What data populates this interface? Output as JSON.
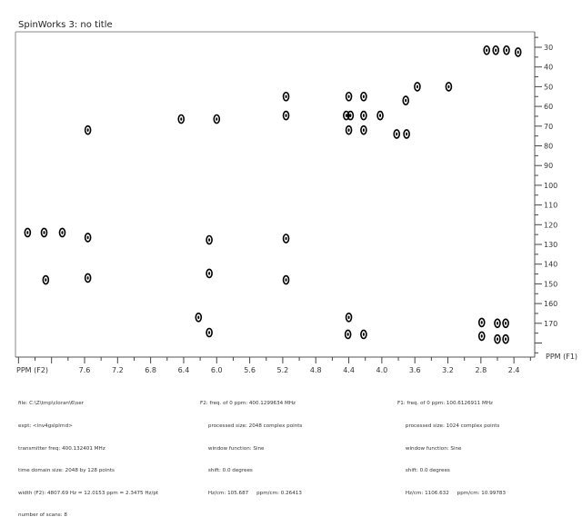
{
  "window_title": "SpinWorks 3: no title",
  "chart_data": {
    "type": "scatter",
    "subtype": "2D NMR contour plot",
    "title": "SpinWorks 3: no title",
    "xlabel": "PPM (F2)",
    "ylabel": "PPM (F1)",
    "xlim": [
      8.4,
      2.2
    ],
    "ylim": [
      22,
      186
    ],
    "x_reversed": true,
    "x_ticks": [
      7.6,
      7.2,
      6.8,
      6.4,
      6.0,
      5.6,
      5.2,
      4.8,
      4.4,
      4.0,
      3.6,
      3.2,
      2.8,
      2.4
    ],
    "y_ticks": [
      30,
      40,
      50,
      60,
      70,
      80,
      90,
      100,
      110,
      120,
      130,
      140,
      150,
      160,
      170
    ],
    "grid": false,
    "contour_color": "#000000",
    "peaks": [
      {
        "f2": 8.29,
        "f1": 124
      },
      {
        "f2": 8.09,
        "f1": 124
      },
      {
        "f2": 7.87,
        "f1": 124
      },
      {
        "f2": 7.56,
        "f1": 126.5
      },
      {
        "f2": 8.07,
        "f1": 148
      },
      {
        "f2": 7.56,
        "f1": 147
      },
      {
        "f2": 7.56,
        "f1": 72
      },
      {
        "f2": 6.43,
        "f1": 66.4
      },
      {
        "f2": 6.0,
        "f1": 66.4
      },
      {
        "f2": 5.16,
        "f1": 55
      },
      {
        "f2": 5.16,
        "f1": 64.6
      },
      {
        "f2": 5.16,
        "f1": 127
      },
      {
        "f2": 5.16,
        "f1": 148
      },
      {
        "f2": 6.09,
        "f1": 127.7
      },
      {
        "f2": 6.09,
        "f1": 144.7
      },
      {
        "f2": 6.22,
        "f1": 167
      },
      {
        "f2": 6.09,
        "f1": 174.7
      },
      {
        "f2": 4.4,
        "f1": 55
      },
      {
        "f2": 4.22,
        "f1": 55
      },
      {
        "f2": 4.43,
        "f1": 64.6
      },
      {
        "f2": 4.38,
        "f1": 64.6
      },
      {
        "f2": 4.22,
        "f1": 64.6
      },
      {
        "f2": 4.02,
        "f1": 64.6
      },
      {
        "f2": 4.4,
        "f1": 72
      },
      {
        "f2": 4.22,
        "f1": 72
      },
      {
        "f2": 3.82,
        "f1": 74
      },
      {
        "f2": 3.7,
        "f1": 74
      },
      {
        "f2": 3.57,
        "f1": 50
      },
      {
        "f2": 3.19,
        "f1": 50
      },
      {
        "f2": 3.71,
        "f1": 57
      },
      {
        "f2": 4.4,
        "f1": 167
      },
      {
        "f2": 4.41,
        "f1": 175.6
      },
      {
        "f2": 4.22,
        "f1": 175.6
      },
      {
        "f2": 2.79,
        "f1": 169.6
      },
      {
        "f2": 2.79,
        "f1": 176.5
      },
      {
        "f2": 2.6,
        "f1": 170
      },
      {
        "f2": 2.6,
        "f1": 178
      },
      {
        "f2": 2.5,
        "f1": 170
      },
      {
        "f2": 2.5,
        "f1": 178
      },
      {
        "f2": 2.73,
        "f1": 31.5
      },
      {
        "f2": 2.62,
        "f1": 31.5
      },
      {
        "f2": 2.49,
        "f1": 31.5
      },
      {
        "f2": 2.35,
        "f1": 32.5
      }
    ]
  },
  "info": {
    "left": [
      "file: C:\\Z\\tmp\\cloran\\6\\ser",
      "expt: <inv4gslplrnd>",
      "transmitter freq: 400.132401 MHz",
      "time domain size: 2048 by 128 points",
      "width (F2): 4807.69 Hz = 12.0153 ppm = 2.3475 Hz/pt",
      "number of scans: 8"
    ],
    "f2": [
      "F2: freq. of 0 ppm: 400.1299634 MHz",
      "     processed size: 2048 complex points",
      "     window function: Sine",
      "     shift: 0.0 degrees",
      "     Hz/cm: 105.687     ppm/cm: 0.26413"
    ],
    "f1": [
      "F1: freq. of 0 ppm: 100.6126911 MHz",
      "     processed size: 1024 complex points",
      "     window function: Sine",
      "     shift: 0.0 degrees",
      "     Hz/cm: 1106.632     ppm/cm: 10.99783"
    ]
  }
}
